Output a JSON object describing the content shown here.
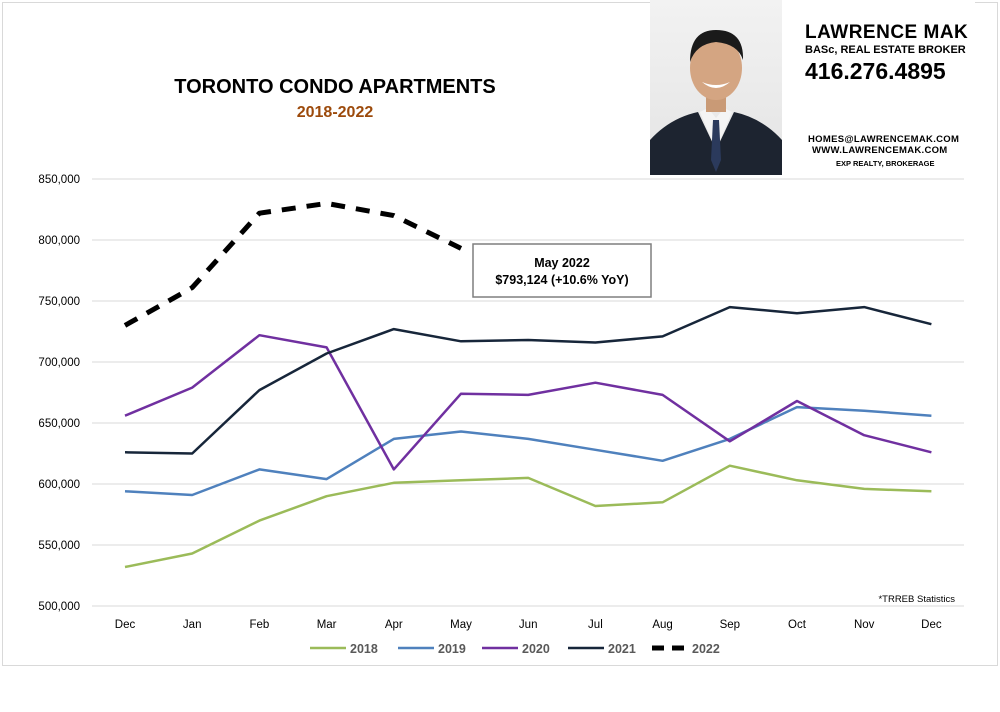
{
  "chart_data": {
    "type": "line",
    "title": "TORONTO CONDO APARTMENTS",
    "subtitle": "2018-2022",
    "categories": [
      "Dec",
      "Jan",
      "Feb",
      "Mar",
      "Apr",
      "May",
      "Jun",
      "Jul",
      "Aug",
      "Sep",
      "Oct",
      "Nov",
      "Dec"
    ],
    "y_ticks": [
      "850,000",
      "800,000",
      "750,000",
      "700,000",
      "650,000",
      "600,000",
      "550,000",
      "500,000"
    ],
    "ylim": [
      500000,
      850000
    ],
    "grid": true,
    "legend_position": "bottom",
    "series": [
      {
        "name": "2018",
        "color": "#9bbb59",
        "dashed": false,
        "values": [
          532000,
          543000,
          570000,
          590000,
          601000,
          603000,
          605000,
          582000,
          585000,
          615000,
          603000,
          596000,
          594000
        ]
      },
      {
        "name": "2019",
        "color": "#4f81bd",
        "dashed": false,
        "values": [
          594000,
          591000,
          612000,
          604000,
          637000,
          643000,
          637000,
          628000,
          619000,
          637000,
          663000,
          660000,
          656000
        ]
      },
      {
        "name": "2020",
        "color": "#7030a0",
        "dashed": false,
        "values": [
          656000,
          679000,
          722000,
          712000,
          612000,
          674000,
          673000,
          683000,
          673000,
          635000,
          668000,
          640000,
          626000
        ]
      },
      {
        "name": "2021",
        "color": "#17263a",
        "dashed": false,
        "values": [
          626000,
          625000,
          677000,
          707000,
          727000,
          717000,
          718000,
          716000,
          721000,
          745000,
          740000,
          745000,
          731000
        ]
      },
      {
        "name": "2022",
        "color": "#000000",
        "dashed": true,
        "values": [
          730000,
          761000,
          822000,
          830000,
          820000,
          793124,
          null,
          null,
          null,
          null,
          null,
          null,
          null
        ]
      }
    ],
    "annotation": {
      "line1": "May 2022",
      "line2": "$793,124  (+10.6%  YoY)"
    },
    "source_note": "*TRREB Statistics"
  },
  "agent": {
    "name": "LAWRENCE MAK",
    "credentials": "BASc, REAL ESTATE BROKER",
    "phone": "416.276.4895",
    "email": "HOMES@LAWRENCEMAK.COM",
    "website": "WWW.LAWRENCEMAK.COM",
    "brokerage": "EXP REALTY, BROKERAGE"
  }
}
